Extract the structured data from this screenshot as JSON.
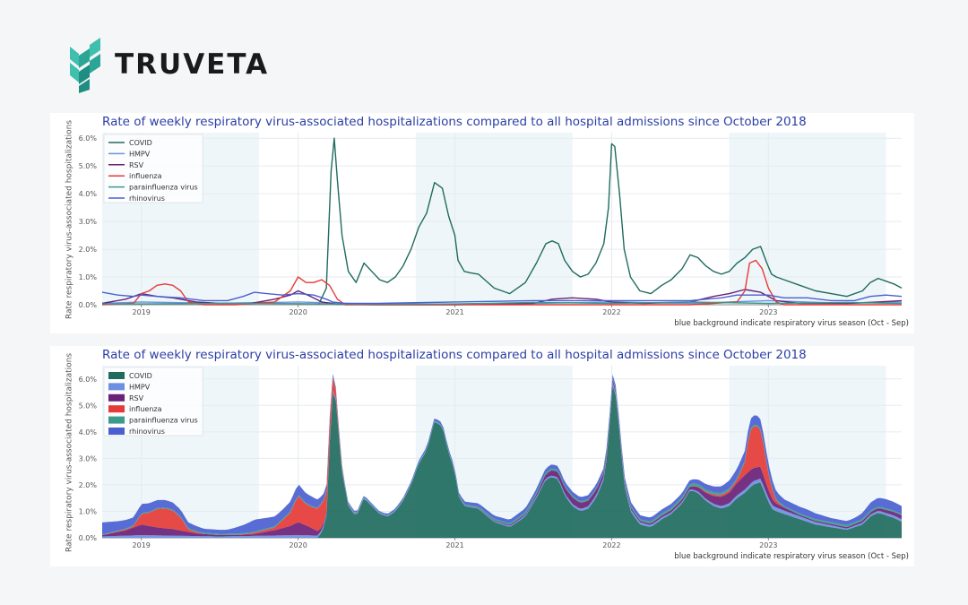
{
  "brand": {
    "name": "TRUVETA"
  },
  "note": "blue background indicate respiratory virus season (Oct - Sep)",
  "chart_data": [
    {
      "type": "line",
      "title": "Rate of weekly respiratory virus-associated hospitalizations compared to all hospital admissions since October 2018",
      "ylabel": "Rate respiratory virus-associated hospitalizations",
      "xlabel": "",
      "ylim": [
        0,
        6.2
      ],
      "yticks": [
        "0.0%",
        "1.0%",
        "2.0%",
        "3.0%",
        "4.0%",
        "5.0%",
        "6.0%"
      ],
      "xticks": [
        "2019",
        "2020",
        "2021",
        "2022",
        "2023"
      ],
      "legend": "top-left",
      "seasons": [
        [
          2018.75,
          2019.75
        ],
        [
          2020.75,
          2021.75
        ],
        [
          2022.75,
          2023.75
        ]
      ],
      "series": [
        {
          "name": "COVID",
          "color": "#1f6b5e",
          "x": [
            2020.13,
            2020.18,
            2020.21,
            2020.23,
            2020.25,
            2020.28,
            2020.32,
            2020.37,
            2020.42,
            2020.47,
            2020.52,
            2020.57,
            2020.62,
            2020.67,
            2020.72,
            2020.77,
            2020.82,
            2020.87,
            2020.92,
            2020.96,
            2021.0,
            2021.02,
            2021.06,
            2021.1,
            2021.15,
            2021.25,
            2021.35,
            2021.45,
            2021.52,
            2021.58,
            2021.62,
            2021.66,
            2021.7,
            2021.75,
            2021.8,
            2021.85,
            2021.9,
            2021.95,
            2021.98,
            2022.0,
            2022.02,
            2022.05,
            2022.08,
            2022.12,
            2022.18,
            2022.25,
            2022.32,
            2022.38,
            2022.45,
            2022.5,
            2022.55,
            2022.6,
            2022.65,
            2022.7,
            2022.75,
            2022.8,
            2022.85,
            2022.9,
            2022.95,
            2022.99,
            2023.02,
            2023.05,
            2023.1,
            2023.2,
            2023.3,
            2023.4,
            2023.5,
            2023.6,
            2023.65,
            2023.7,
            2023.75,
            2023.8,
            2023.85
          ],
          "y": [
            0.0,
            0.6,
            4.8,
            6.0,
            4.5,
            2.5,
            1.2,
            0.8,
            1.5,
            1.2,
            0.9,
            0.8,
            1.0,
            1.4,
            2.0,
            2.8,
            3.3,
            4.4,
            4.2,
            3.2,
            2.5,
            1.6,
            1.2,
            1.15,
            1.1,
            0.6,
            0.4,
            0.8,
            1.5,
            2.2,
            2.3,
            2.2,
            1.6,
            1.2,
            1.0,
            1.1,
            1.5,
            2.2,
            3.5,
            5.8,
            5.7,
            4.0,
            2.0,
            1.0,
            0.5,
            0.4,
            0.7,
            0.9,
            1.3,
            1.8,
            1.7,
            1.4,
            1.2,
            1.1,
            1.2,
            1.5,
            1.7,
            2.0,
            2.1,
            1.5,
            1.1,
            1.0,
            0.9,
            0.7,
            0.5,
            0.4,
            0.3,
            0.5,
            0.8,
            0.95,
            0.85,
            0.75,
            0.6
          ]
        },
        {
          "name": "HMPV",
          "color": "#6d8fe3",
          "x": [
            2018.75,
            2019.0,
            2019.5,
            2020.0,
            2020.5,
            2021.0,
            2021.5,
            2022.0,
            2022.5,
            2023.0,
            2023.5,
            2023.85
          ],
          "y": [
            0.05,
            0.1,
            0.05,
            0.1,
            0.02,
            0.02,
            0.05,
            0.1,
            0.05,
            0.15,
            0.05,
            0.1
          ]
        },
        {
          "name": "RSV",
          "color": "#6b2177",
          "x": [
            2018.75,
            2018.9,
            2019.0,
            2019.1,
            2019.2,
            2019.35,
            2019.5,
            2019.7,
            2019.85,
            2019.95,
            2020.0,
            2020.08,
            2020.15,
            2020.25,
            2020.5,
            2021.0,
            2021.5,
            2021.62,
            2021.75,
            2021.9,
            2022.0,
            2022.2,
            2022.5,
            2022.65,
            2022.75,
            2022.85,
            2022.95,
            2023.05,
            2023.2,
            2023.5,
            2023.7,
            2023.85
          ],
          "y": [
            0.05,
            0.2,
            0.4,
            0.3,
            0.25,
            0.1,
            0.05,
            0.05,
            0.2,
            0.35,
            0.5,
            0.3,
            0.1,
            0.02,
            0.0,
            0.0,
            0.05,
            0.2,
            0.25,
            0.2,
            0.1,
            0.05,
            0.1,
            0.3,
            0.4,
            0.55,
            0.45,
            0.15,
            0.05,
            0.05,
            0.1,
            0.15
          ]
        },
        {
          "name": "influenza",
          "color": "#e53b36",
          "x": [
            2018.75,
            2018.95,
            2019.0,
            2019.05,
            2019.1,
            2019.15,
            2019.2,
            2019.25,
            2019.3,
            2019.4,
            2019.6,
            2019.85,
            2019.95,
            2020.0,
            2020.05,
            2020.1,
            2020.15,
            2020.2,
            2020.25,
            2020.3,
            2021.0,
            2022.0,
            2022.5,
            2022.8,
            2022.85,
            2022.88,
            2022.92,
            2022.96,
            2023.0,
            2023.05,
            2023.1,
            2023.5,
            2023.85
          ],
          "y": [
            0.0,
            0.05,
            0.4,
            0.5,
            0.7,
            0.75,
            0.7,
            0.5,
            0.1,
            0.0,
            0.0,
            0.1,
            0.5,
            1.0,
            0.8,
            0.8,
            0.9,
            0.7,
            0.2,
            0.0,
            0.0,
            0.0,
            0.0,
            0.1,
            0.5,
            1.5,
            1.6,
            1.3,
            0.6,
            0.1,
            0.0,
            0.0,
            0.0
          ]
        },
        {
          "name": "parainfluenza virus",
          "color": "#3a9a8c",
          "x": [
            2018.75,
            2019.0,
            2019.5,
            2020.0,
            2020.5,
            2021.0,
            2021.5,
            2022.0,
            2022.5,
            2023.0,
            2023.5,
            2023.85
          ],
          "y": [
            0.03,
            0.03,
            0.05,
            0.04,
            0.02,
            0.03,
            0.08,
            0.05,
            0.1,
            0.05,
            0.08,
            0.05
          ]
        },
        {
          "name": "rhinovirus",
          "color": "#4a5fd0",
          "x": [
            2018.75,
            2018.85,
            2018.95,
            2019.0,
            2019.1,
            2019.25,
            2019.4,
            2019.55,
            2019.65,
            2019.72,
            2019.8,
            2019.9,
            2020.0,
            2020.1,
            2020.18,
            2020.22,
            2020.3,
            2020.5,
            2021.0,
            2021.5,
            2022.0,
            2022.5,
            2022.7,
            2022.8,
            2022.9,
            2023.0,
            2023.1,
            2023.25,
            2023.4,
            2023.55,
            2023.65,
            2023.75,
            2023.85
          ],
          "y": [
            0.45,
            0.35,
            0.3,
            0.35,
            0.3,
            0.25,
            0.15,
            0.15,
            0.3,
            0.45,
            0.4,
            0.35,
            0.4,
            0.35,
            0.2,
            0.1,
            0.05,
            0.05,
            0.1,
            0.15,
            0.15,
            0.15,
            0.25,
            0.35,
            0.35,
            0.35,
            0.25,
            0.25,
            0.15,
            0.15,
            0.3,
            0.35,
            0.3
          ]
        }
      ]
    },
    {
      "type": "area",
      "stacked": true,
      "title": "Rate of weekly respiratory virus-associated hospitalizations compared to all hospital admissions since October 2018",
      "ylabel": "Rate respiratory virus-associated hospitalizations",
      "xlabel": "",
      "ylim": [
        0,
        6.5
      ],
      "yticks": [
        "0.0%",
        "1.0%",
        "2.0%",
        "3.0%",
        "4.0%",
        "5.0%",
        "6.0%"
      ],
      "xticks": [
        "2019",
        "2020",
        "2021",
        "2022",
        "2023"
      ],
      "legend": "top-left",
      "seasons": [
        [
          2018.75,
          2019.75
        ],
        [
          2020.75,
          2021.75
        ],
        [
          2022.75,
          2023.75
        ]
      ],
      "series_ref": "same values as the line chart, stacked"
    }
  ]
}
